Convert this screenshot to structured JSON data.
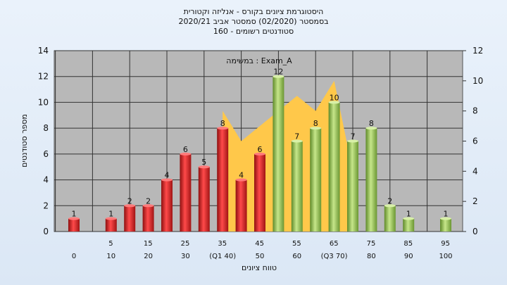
{
  "chart_data": {
    "type": "bar",
    "title_lines": [
      "היסטוגרמת ציונים בקורס - אנליזה וקטורית",
      "בסמסטר  (02/2020)  סמסטר אביב 2020/21",
      "160 - סטודנטים רשומים"
    ],
    "legend": "במשימה : Exam_A",
    "xlabel": "טווח ציונים",
    "ylabel": "מספר סטודנטים",
    "ylim": [
      0,
      14
    ],
    "y_ticks": [
      0,
      2,
      4,
      6,
      8,
      10,
      12,
      14
    ],
    "y2lim": [
      0,
      12
    ],
    "y2_ticks": [
      0,
      2,
      4,
      6,
      8,
      10,
      12
    ],
    "x_tick_labels_upper": [
      "5",
      "15",
      "25",
      "35",
      "45",
      "55",
      "65",
      "75",
      "85",
      "95"
    ],
    "x_tick_labels_lower": [
      "0",
      "10",
      "20",
      "30",
      "(Q1 40)",
      "50",
      "60",
      "(Q3 70)",
      "80",
      "90",
      "100"
    ],
    "categories": [
      0,
      10,
      15,
      20,
      25,
      30,
      35,
      40,
      45,
      50,
      55,
      60,
      65,
      70,
      75,
      80,
      85,
      90,
      100
    ],
    "values": [
      1,
      1,
      2,
      2,
      4,
      6,
      5,
      8,
      4,
      6,
      12,
      7,
      8,
      10,
      7,
      8,
      2,
      1,
      1
    ],
    "groups": [
      "low",
      "low",
      "low",
      "low",
      "low",
      "low",
      "low",
      "low",
      "low",
      "low",
      "high",
      "high",
      "high",
      "high",
      "high",
      "high",
      "high",
      "high",
      "high"
    ],
    "area": {
      "x": [
        40,
        45,
        50,
        55,
        60,
        65,
        70,
        75
      ],
      "y": [
        8,
        6,
        7,
        8,
        9,
        8,
        10,
        4
      ]
    },
    "colors": {
      "low": "#e02828",
      "high": "#9cc45a",
      "area": "#ffc84a",
      "plot_bg": "#b8b8b8"
    }
  }
}
